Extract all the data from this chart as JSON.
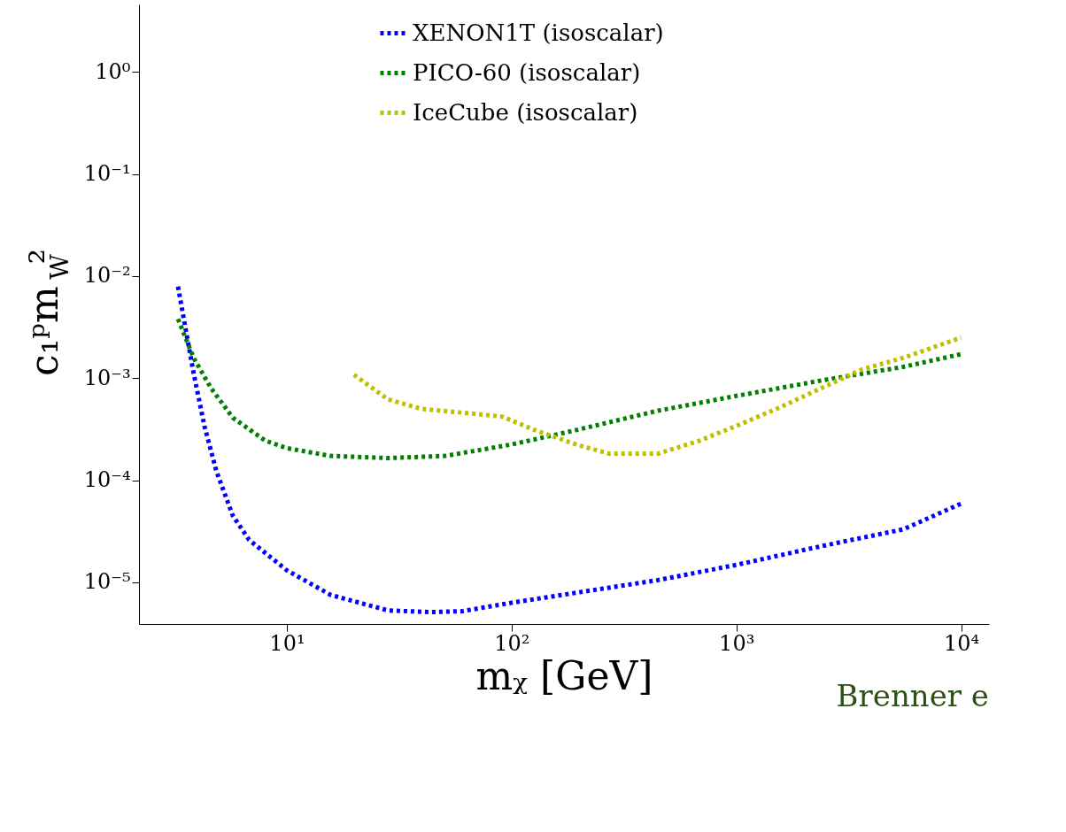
{
  "chart_data": {
    "type": "line",
    "xlabel": "mᵪ [GeV]",
    "ylabel": "c₁ᵖm$_{W}$²",
    "log": "xy",
    "grid": false,
    "legend": "top",
    "line_style": "dotted",
    "marker": "none",
    "xlim": [
      2.2,
      13300
    ],
    "ylim": [
      3.9e-06,
      4.6
    ],
    "xticks": [
      {
        "value": 10,
        "label": "10¹"
      },
      {
        "value": 100,
        "label": "10²"
      },
      {
        "value": 1000,
        "label": "10³"
      },
      {
        "value": 10000,
        "label": "10⁴"
      }
    ],
    "yticks": [
      {
        "value": 1e-05,
        "label": "10⁻⁵"
      },
      {
        "value": 0.0001,
        "label": "10⁻⁴"
      },
      {
        "value": 0.001,
        "label": "10⁻³"
      },
      {
        "value": 0.01,
        "label": "10⁻²"
      },
      {
        "value": 0.1,
        "label": "10⁻¹"
      },
      {
        "value": 1,
        "label": "10⁰"
      }
    ],
    "annotations": [
      "Brenner e"
    ],
    "series": [
      {
        "name": "XENON1T (isoscalar)",
        "color": "#0000ff",
        "x": [
          3.28,
          3.54,
          3.85,
          4.3,
          4.86,
          5.75,
          6.8,
          10,
          15.7,
          28.2,
          43,
          60,
          100,
          194,
          448,
          1000,
          2390,
          5520,
          10000
        ],
        "values": [
          0.0079,
          0.0031,
          0.00112,
          0.00034,
          0.000123,
          4.5e-05,
          2.6e-05,
          1.31e-05,
          7.5e-06,
          5.3e-06,
          5.1e-06,
          5.2e-06,
          6.3e-06,
          7.9e-06,
          1.05e-05,
          1.48e-05,
          2.26e-05,
          3.3e-05,
          5.9e-05
        ]
      },
      {
        "name": "PICO-60 (isoscalar)",
        "color": "#007f00",
        "x": [
          3.28,
          3.85,
          4.6,
          5.75,
          8.0,
          10,
          15.7,
          28.2,
          50.7,
          100,
          194,
          448,
          1000,
          2390,
          5520,
          10000
        ],
        "values": [
          0.0038,
          0.00158,
          0.0008,
          0.00041,
          0.000245,
          0.000206,
          0.000173,
          0.000165,
          0.000173,
          0.000224,
          0.00031,
          0.00048,
          0.00067,
          0.00095,
          0.00129,
          0.00172
        ]
      },
      {
        "name": "IceCube (isoscalar)",
        "color": "#bfbf00",
        "x": [
          19.9,
          28.2,
          39.7,
          60,
          91,
          127,
          194,
          272,
          448,
          681,
          1000,
          1570,
          2390,
          3630,
          5520,
          10000
        ],
        "values": [
          0.00108,
          0.00062,
          0.0005,
          0.00046,
          0.00042,
          0.00031,
          0.000224,
          0.000182,
          0.000182,
          0.000243,
          0.00034,
          0.00052,
          0.0008,
          0.00122,
          0.00158,
          0.0025
        ]
      }
    ]
  }
}
